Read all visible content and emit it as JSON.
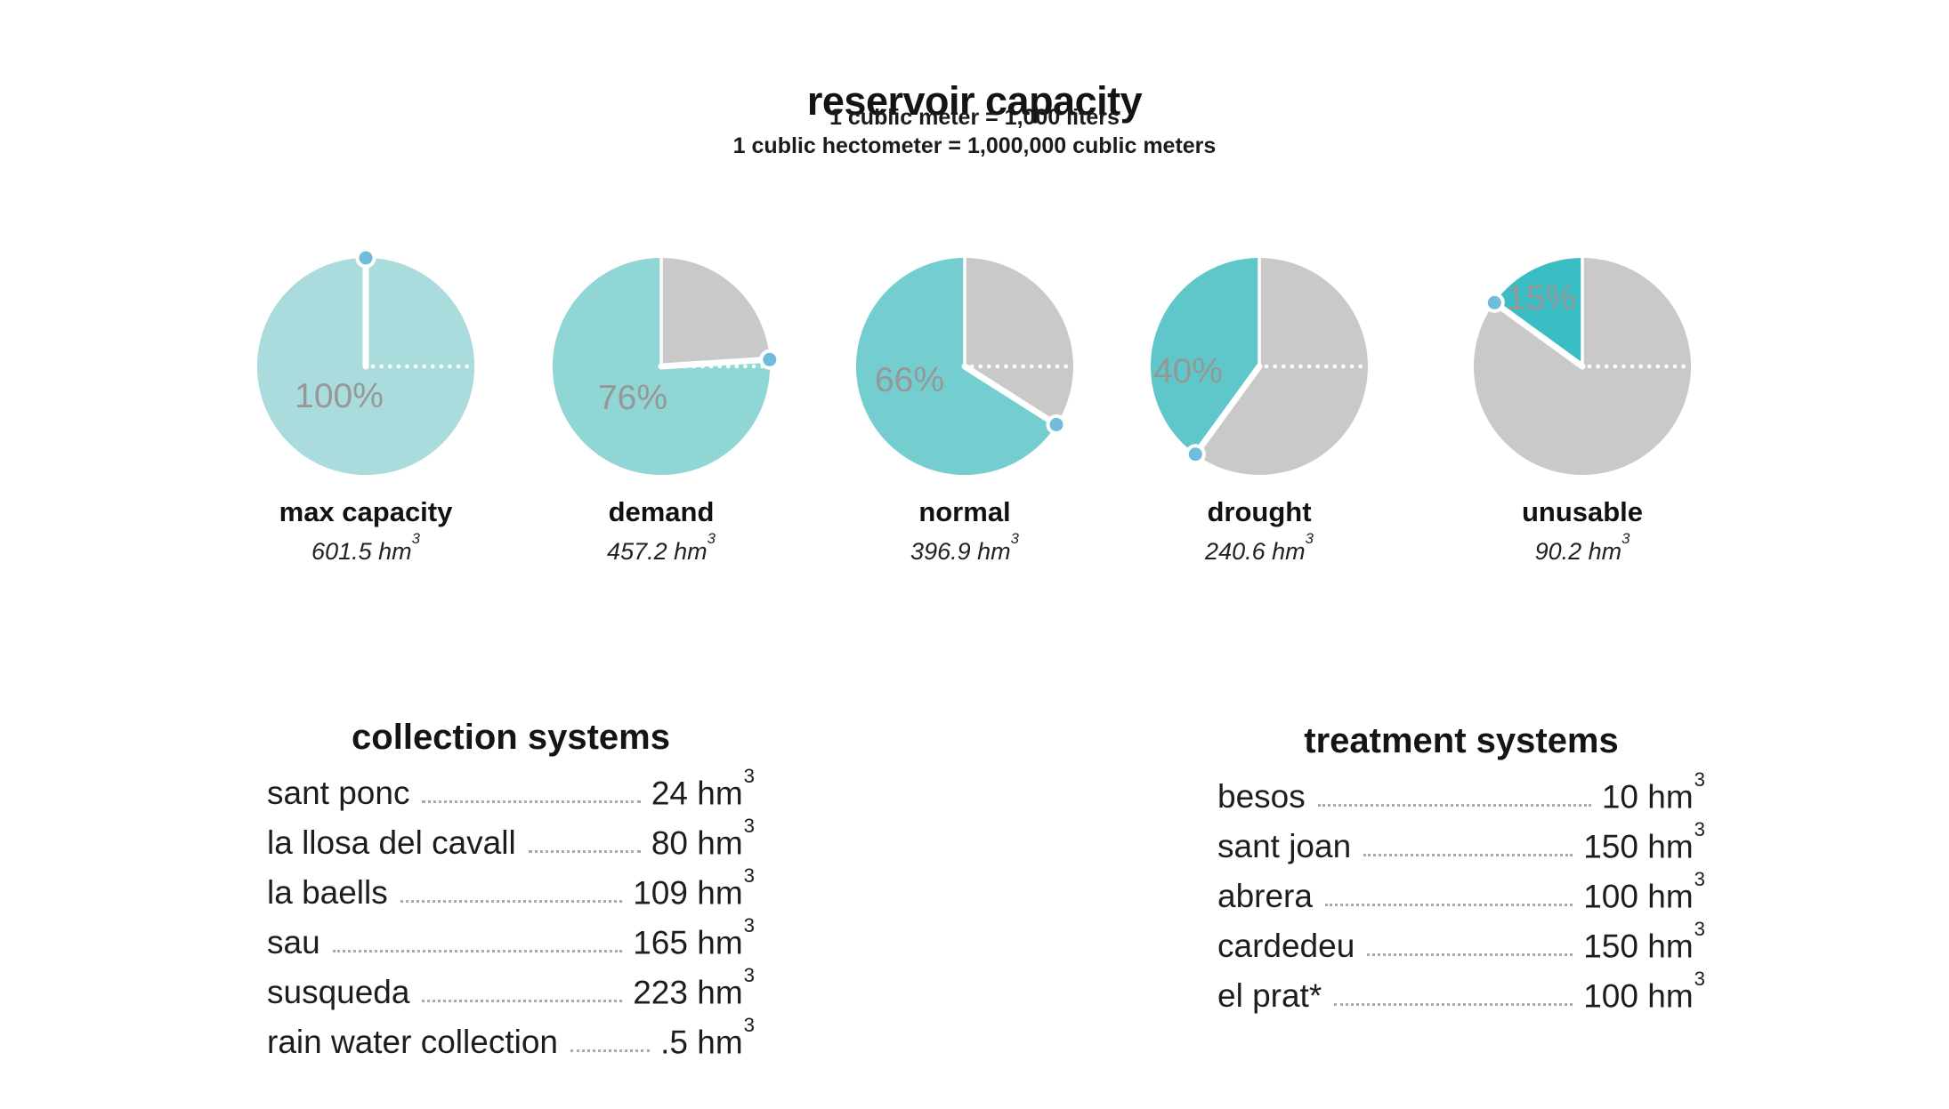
{
  "header": {
    "title": "reservoir capacity",
    "subtitle_line1": "1 cublic meter = 1,000 liters",
    "subtitle_line2": "1 cublic hectometer = 1,000,000 cublic meters"
  },
  "pies": [
    {
      "percent": 100,
      "percent_label": "100%",
      "label": "max capacity",
      "value": "601.5 hm",
      "value_sup": "3",
      "color": "#aadcdd"
    },
    {
      "percent": 76,
      "percent_label": "76%",
      "label": "demand",
      "value": "457.2 hm",
      "value_sup": "3",
      "color": "#8fd6d4"
    },
    {
      "percent": 66,
      "percent_label": "66%",
      "label": "normal",
      "value": "396.9 hm",
      "value_sup": "3",
      "color": "#74ced0"
    },
    {
      "percent": 40,
      "percent_label": "40%",
      "label": "drought",
      "value": "240.6 hm",
      "value_sup": "3",
      "color": "#5fc7ca"
    },
    {
      "percent": 15,
      "percent_label": "15%",
      "label": "unusable",
      "value": "90.2 hm",
      "value_sup": "3",
      "color": "#3abdc3"
    }
  ],
  "lists": {
    "collection": {
      "title": "collection systems",
      "items": [
        {
          "name": "sant ponc",
          "amount": "24",
          "unit": "hm",
          "sup": "3"
        },
        {
          "name": "la llosa del cavall",
          "amount": "80",
          "unit": "hm",
          "sup": "3"
        },
        {
          "name": "la baells",
          "amount": "109",
          "unit": "hm",
          "sup": "3"
        },
        {
          "name": "sau",
          "amount": "165",
          "unit": "hm",
          "sup": "3"
        },
        {
          "name": "susqueda",
          "amount": "223",
          "unit": "hm",
          "sup": "3"
        },
        {
          "name": "rain water collection",
          "amount": ".5",
          "unit": "hm",
          "sup": "3"
        }
      ]
    },
    "treatment": {
      "title": "treatment systems",
      "items": [
        {
          "name": "besos",
          "amount": "10",
          "unit": "hm",
          "sup": "3"
        },
        {
          "name": "sant joan",
          "amount": "150",
          "unit": "hm",
          "sup": "3"
        },
        {
          "name": "abrera",
          "amount": "100",
          "unit": "hm",
          "sup": "3"
        },
        {
          "name": "cardedeu",
          "amount": "150",
          "unit": "hm",
          "sup": "3"
        },
        {
          "name": "el prat*",
          "amount": "100",
          "unit": "hm",
          "sup": "3"
        }
      ]
    }
  },
  "colors": {
    "empty_slice": "#c9c9c9",
    "marker_dot": "#6fbcdb",
    "percent_text": "#979797",
    "divider_lines": "#ffffff"
  },
  "chart_data": [
    {
      "type": "pie",
      "title": "reservoir capacity",
      "legend_position": "below-each-pie",
      "series": [
        {
          "name": "max capacity",
          "percent_full": 100,
          "percent_empty": 0,
          "volume_hm3": 601.5
        },
        {
          "name": "demand",
          "percent_full": 76,
          "percent_empty": 24,
          "volume_hm3": 457.2
        },
        {
          "name": "normal",
          "percent_full": 66,
          "percent_empty": 34,
          "volume_hm3": 396.9
        },
        {
          "name": "drought",
          "percent_full": 40,
          "percent_empty": 60,
          "volume_hm3": 240.6
        },
        {
          "name": "unusable",
          "percent_full": 15,
          "percent_empty": 85,
          "volume_hm3": 90.2
        }
      ],
      "notes": [
        "1 cublic meter = 1,000 liters",
        "1 cublic hectometer = 1,000,000 cublic meters"
      ]
    },
    {
      "type": "table",
      "title": "collection systems",
      "unit": "hm3",
      "rows": [
        [
          "sant ponc",
          24
        ],
        [
          "la llosa del cavall",
          80
        ],
        [
          "la baells",
          109
        ],
        [
          "sau",
          165
        ],
        [
          "susqueda",
          223
        ],
        [
          "rain water collection",
          0.5
        ]
      ]
    },
    {
      "type": "table",
      "title": "treatment systems",
      "unit": "hm3",
      "rows": [
        [
          "besos",
          10
        ],
        [
          "sant joan",
          150
        ],
        [
          "abrera",
          100
        ],
        [
          "cardedeu",
          150
        ],
        [
          "el prat*",
          100
        ]
      ]
    }
  ]
}
